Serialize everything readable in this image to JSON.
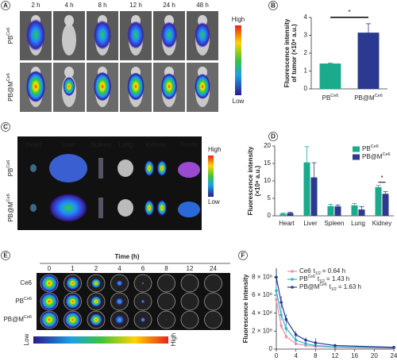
{
  "panels": {
    "A": {
      "label": "A",
      "times": [
        "2 h",
        "4 h",
        "8 h",
        "12 h",
        "24 h",
        "48 h"
      ],
      "rows": [
        {
          "name": "PB",
          "sup": "Ce6"
        },
        {
          "name": "PB@M",
          "sup": "Ce6"
        }
      ],
      "scale_high": "High",
      "scale_low": "Low"
    },
    "C": {
      "label": "C",
      "organs": [
        "Heart",
        "Liver",
        "Spleen",
        "Lung",
        "Kidney",
        "Tumor"
      ],
      "rows": [
        {
          "name": "PB",
          "sup": "Ce6"
        },
        {
          "name": "PB@M",
          "sup": "Ce6"
        }
      ],
      "scale_high": "High",
      "scale_low": "Low"
    },
    "E": {
      "label": "E",
      "title": "Time (h)",
      "times": [
        "0",
        "1",
        "2",
        "4",
        "6",
        "8",
        "12",
        "24"
      ],
      "rows": [
        {
          "name": "Ce6"
        },
        {
          "name": "PB",
          "sup": "Ce6"
        },
        {
          "name": "PB@M",
          "sup": "Ce6"
        }
      ],
      "scale_high": "High",
      "scale_low": "Low"
    }
  },
  "chart_data": [
    {
      "type": "bar",
      "panel_label": "B",
      "ylabel": [
        "Fluorescence intensity",
        "of tumor (×10⁸ a.u.)"
      ],
      "categories": [
        "PB",
        "PB@M"
      ],
      "category_sups": [
        "Ce6",
        "Ce6"
      ],
      "values": [
        1.42,
        3.15
      ],
      "errors": [
        0.03,
        0.5
      ],
      "colors": [
        "#1aaa8c",
        "#2b3990"
      ],
      "ylim": [
        0,
        4
      ],
      "yticks": [
        0,
        1,
        2,
        3,
        4
      ],
      "significance": "*"
    },
    {
      "type": "grouped_bar",
      "panel_label": "D",
      "ylabel": [
        "Fluorescence intensity",
        "(×10⁸ a.u.)"
      ],
      "categories": [
        "Heart",
        "Liver",
        "Spleen",
        "Lung",
        "Kidney"
      ],
      "series": [
        {
          "name": "PB",
          "name_sup": "Ce6",
          "color": "#1aaa8c",
          "values": [
            0.6,
            15.3,
            2.8,
            3.0,
            8.2
          ],
          "errors": [
            0.2,
            4.5,
            0.5,
            0.5,
            0.5
          ]
        },
        {
          "name": "PB@M",
          "name_sup": "Ce6",
          "color": "#2b3990",
          "values": [
            0.8,
            11.0,
            2.7,
            1.8,
            6.3
          ],
          "errors": [
            0.2,
            4.2,
            0.4,
            0.8,
            0.6
          ]
        }
      ],
      "ylim": [
        0,
        20
      ],
      "yticks": [
        0,
        5,
        10,
        15,
        20
      ],
      "significance": "*",
      "legend": "upper right"
    },
    {
      "type": "line",
      "panel_label": "F",
      "ylabel": "Fluorescence intensity",
      "x": [
        0,
        1,
        2,
        4,
        6,
        8,
        12,
        24
      ],
      "half_life_symbol": "t",
      "half_life_subscript": "1/2",
      "series": [
        {
          "name": "Ce6",
          "half_life": "= 0.64 h",
          "color": "#f08fa0",
          "values": [
            550000000,
            260000000,
            140000000,
            60000000,
            40000000,
            30000000,
            20000000,
            10000000
          ],
          "errors": [
            60000000,
            40000000,
            30000000,
            20000000,
            15000000,
            10000000,
            8000000,
            5000000
          ]
        },
        {
          "name": "PB",
          "name_sup": "Ce6",
          "half_life": "= 1.43 h",
          "color": "#29b6d8",
          "values": [
            650000000,
            380000000,
            230000000,
            100000000,
            60000000,
            40000000,
            25000000,
            15000000
          ],
          "errors": [
            80000000,
            60000000,
            50000000,
            30000000,
            20000000,
            15000000,
            10000000,
            5000000
          ]
        },
        {
          "name": "PB@M",
          "name_sup": "Ce6",
          "half_life": "= 1.63 h",
          "color": "#2b3990",
          "values": [
            800000000,
            520000000,
            330000000,
            160000000,
            100000000,
            70000000,
            40000000,
            20000000
          ],
          "errors": [
            90000000,
            70000000,
            60000000,
            40000000,
            30000000,
            50000000,
            10000000,
            5000000
          ]
        }
      ],
      "xlim": [
        0,
        24
      ],
      "xticks": [
        0,
        4,
        8,
        12,
        16,
        20,
        24
      ],
      "ylim": [
        0,
        900000000
      ],
      "yticks": [
        0,
        {
          "value": 200000000,
          "label": "2 × 10⁸"
        },
        {
          "value": 400000000,
          "label": "4 × 10⁸"
        },
        {
          "value": 600000000,
          "label": "6 × 10⁸"
        },
        {
          "value": 800000000,
          "label": "8 × 10⁸"
        }
      ],
      "legend": "upper right"
    }
  ]
}
